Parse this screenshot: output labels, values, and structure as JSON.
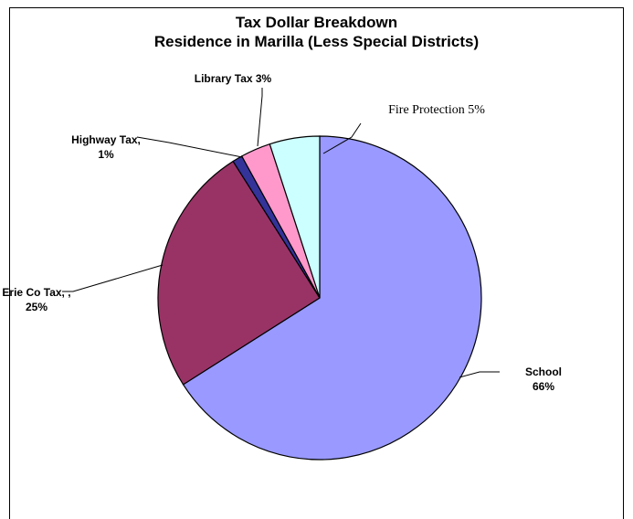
{
  "chart_data": {
    "type": "pie",
    "title": "Tax Dollar Breakdown",
    "subtitle": "Residence in Marilla (Less Special Districts)",
    "slices": [
      {
        "name": "School",
        "value": 66,
        "label_lines": [
          "School",
          "66%"
        ],
        "color": "#9999ff"
      },
      {
        "name": "Erie Co Tax, ,",
        "value": 25,
        "label_lines": [
          "Erie Co Tax, ,",
          "25%"
        ],
        "color": "#993366"
      },
      {
        "name": "Highway Tax,",
        "value": 1,
        "label_lines": [
          "Highway Tax,",
          "1%"
        ],
        "color": "#333399"
      },
      {
        "name": "Library Tax",
        "value": 3,
        "label_lines": [
          "Library Tax 3%"
        ],
        "color": "#ff99cc"
      },
      {
        "name": "Fire Protection",
        "value": 5,
        "label_lines": [
          "Fire Protection 5%"
        ],
        "color": "#ccffff"
      }
    ],
    "legend": "none"
  }
}
